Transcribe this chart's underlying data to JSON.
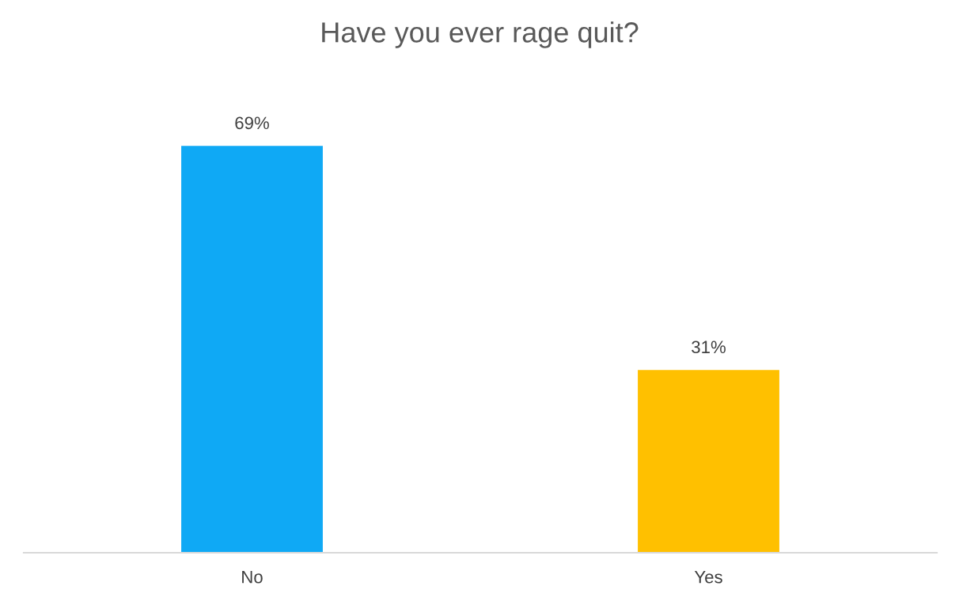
{
  "chart_data": {
    "type": "bar",
    "title": "Have you ever rage quit?",
    "categories": [
      "No",
      "Yes"
    ],
    "values": [
      69,
      31
    ],
    "colors": [
      "#0fa9f5",
      "#ffc000"
    ],
    "value_labels": [
      "69%",
      "31%"
    ],
    "grid": false,
    "legend": false
  }
}
